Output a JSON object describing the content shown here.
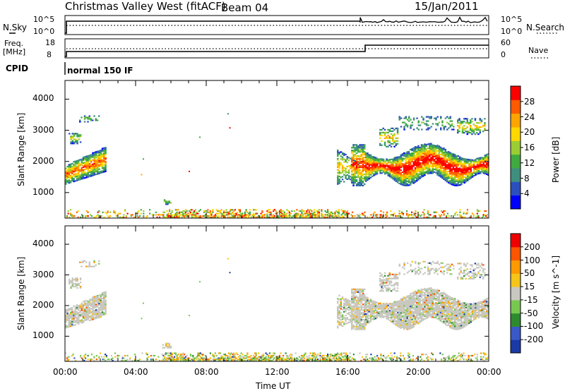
{
  "header": {
    "site_title": "Christmas Valley West (fitACF)",
    "beam": "Beam 04",
    "date": "15/Jan/2011"
  },
  "top_panels": {
    "nsky_label": "N.Sky",
    "nsky_ticks": [
      "10^5",
      "10^0"
    ],
    "nsearch_label": "N.Search",
    "nsearch_ticks": [
      "10^5",
      "10^0"
    ],
    "freq_label": "Freq.",
    "freq_unit": "[MHz]",
    "freq_ticks": [
      "18",
      "8"
    ],
    "nave_label": "Nave",
    "nave_ticks": [
      "60",
      "0"
    ],
    "cpid_label": "CPID",
    "cpid_value": "normal 150 IF"
  },
  "chart_data": [
    {
      "type": "heatmap",
      "title": "",
      "xlabel": "",
      "ylabel": "Slant Range [km]",
      "ylim": [
        180,
        4600
      ],
      "yticks": [
        "4000",
        "3000",
        "2000",
        "1000"
      ],
      "xlim": [
        "00:00",
        "24:00"
      ],
      "colorbar_label": "Power [dB]",
      "colorbar_ticks": [
        "28",
        "24",
        "20",
        "16",
        "12",
        "8",
        "4"
      ],
      "colorbar_range": [
        0,
        32
      ],
      "colors": [
        "#0000ff",
        "#2b4fbf",
        "#3f8f7f",
        "#3faa3f",
        "#9acd32",
        "#ffd700",
        "#ffa500",
        "#ff5a00",
        "#ff0000"
      ]
    },
    {
      "type": "heatmap",
      "title": "",
      "xlabel": "Time UT",
      "ylabel": "Slant Range [km]",
      "ylim": [
        180,
        4600
      ],
      "yticks": [
        "4000",
        "3000",
        "2000",
        "1000"
      ],
      "xlim": [
        "00:00",
        "24:00"
      ],
      "xticks": [
        "00:00",
        "04:00",
        "08:00",
        "12:00",
        "16:00",
        "20:00",
        "00:00"
      ],
      "colorbar_label": "Velocity [m s^-1]",
      "colorbar_ticks": [
        "200",
        "100",
        "50",
        "15",
        "-15",
        "-50",
        "-100",
        "-200"
      ],
      "ground_scatter_color": "#c8c8c0",
      "colors": [
        "#1a3aa8",
        "#3a58c8",
        "#2e8a2e",
        "#78c850",
        "#c8c8c0",
        "#f5c518",
        "#ff9900",
        "#ff5500",
        "#ee0000"
      ]
    }
  ]
}
